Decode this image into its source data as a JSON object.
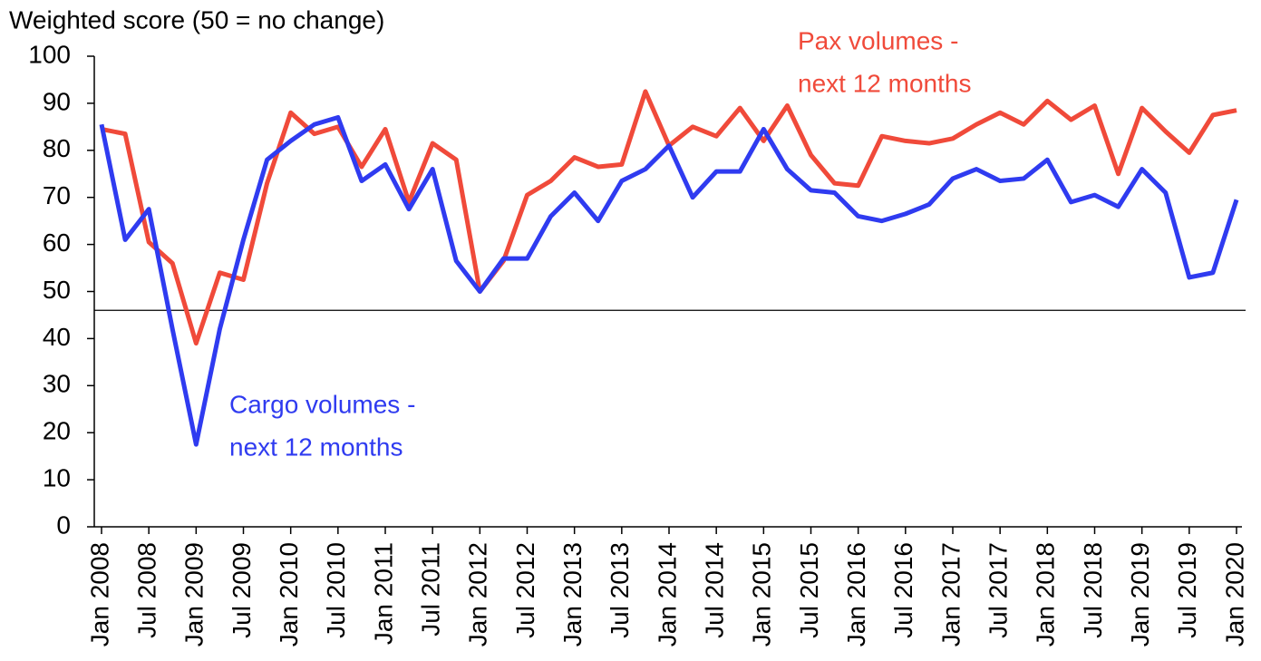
{
  "chart_data": {
    "type": "line",
    "title": "Weighted score  (50 = no change)",
    "categories": [
      "Jan 2008",
      null,
      "Jul 2008",
      null,
      "Jan 2009",
      null,
      "Jul 2009",
      null,
      "Jan 2010",
      null,
      "Jul 2010",
      null,
      "Jan 2011",
      null,
      "Jul 2011",
      null,
      "Jan 2012",
      null,
      "Jul 2012",
      null,
      "Jan 2013",
      null,
      "Jul 2013",
      null,
      "Jan 2014",
      null,
      "Jul 2014",
      null,
      "Jan 2015",
      null,
      "Jul 2015",
      null,
      "Jan 2016",
      null,
      "Jul 2016",
      null,
      "Jan 2017",
      null,
      "Jul 2017",
      null,
      "Jan 2018",
      null,
      "Jul 2018",
      null,
      "Jan 2019",
      null,
      "Jul 2019",
      null,
      "Jan 2020"
    ],
    "series": [
      {
        "name": "Pax volumes - next 12 months",
        "color": "#f04a3a",
        "values": [
          84.5,
          83.5,
          60.5,
          56,
          39,
          54,
          52.5,
          73,
          88,
          83.5,
          85,
          76.5,
          84.5,
          69,
          81.5,
          78,
          50,
          56.5,
          70.5,
          73.5,
          78.5,
          76.5,
          77,
          92.5,
          81,
          85,
          83,
          89,
          82,
          89.5,
          79,
          73,
          72.5,
          83,
          82,
          81.5,
          82.5,
          85.5,
          88,
          85.5,
          90.5,
          86.5,
          89.5,
          75,
          89,
          84,
          79.5,
          87.5,
          88.5
        ]
      },
      {
        "name": "Cargo volumes - next 12 months",
        "color": "#2f3bf0",
        "values": [
          85.5,
          61,
          67.5,
          42,
          17.5,
          42,
          61,
          78,
          82,
          85.5,
          87,
          73.5,
          77,
          67.5,
          76,
          56.5,
          50,
          57,
          57,
          66,
          71,
          65,
          73.5,
          76,
          81,
          70,
          75.5,
          75.5,
          84.5,
          76,
          71.5,
          71,
          66,
          65,
          66.5,
          68.5,
          74,
          76,
          73.5,
          74,
          78,
          69,
          70.5,
          68,
          76,
          71,
          53,
          54,
          69.5
        ]
      }
    ],
    "annotations": [
      {
        "lines": [
          "Pax volumes -",
          "next 12 months"
        ],
        "color": "#f04a3a"
      },
      {
        "lines": [
          "Cargo volumes -",
          "next 12 months"
        ],
        "color": "#2f3bf0"
      }
    ],
    "reference_line": 46,
    "ylim": [
      0,
      100
    ],
    "yticks": [
      0,
      10,
      20,
      30,
      40,
      50,
      60,
      70,
      80,
      90,
      100
    ]
  }
}
